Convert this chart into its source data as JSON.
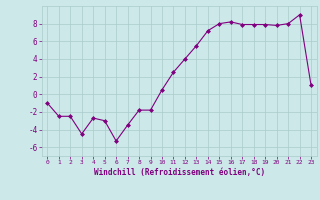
{
  "x": [
    0,
    1,
    2,
    3,
    4,
    5,
    6,
    7,
    8,
    9,
    10,
    11,
    12,
    13,
    14,
    15,
    16,
    17,
    18,
    19,
    20,
    21,
    22,
    23
  ],
  "y": [
    -1.0,
    -2.5,
    -2.5,
    -4.5,
    -2.7,
    -3.0,
    -5.3,
    -3.5,
    -1.8,
    -1.8,
    0.5,
    2.5,
    4.0,
    5.5,
    7.2,
    8.0,
    8.2,
    7.9,
    7.9,
    7.9,
    7.8,
    8.0,
    9.0,
    1.0
  ],
  "xlabel": "Windchill (Refroidissement éolien,°C)",
  "xlim": [
    -0.5,
    23.5
  ],
  "ylim": [
    -7,
    10
  ],
  "yticks": [
    -6,
    -4,
    -2,
    0,
    2,
    4,
    6,
    8
  ],
  "xticks": [
    0,
    1,
    2,
    3,
    4,
    5,
    6,
    7,
    8,
    9,
    10,
    11,
    12,
    13,
    14,
    15,
    16,
    17,
    18,
    19,
    20,
    21,
    22,
    23
  ],
  "line_color": "#800080",
  "marker_color": "#800080",
  "bg_color": "#cce8e8",
  "grid_color": "#aacccc",
  "tick_color": "#800080",
  "label_color": "#800080"
}
